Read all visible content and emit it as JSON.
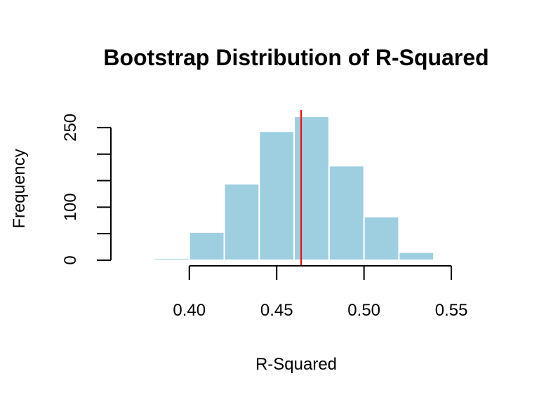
{
  "chart_data": {
    "type": "bar",
    "title": "Bootstrap Distribution of R-Squared",
    "xlabel": "R-Squared",
    "ylabel": "Frequency",
    "bins": [
      {
        "start": 0.38,
        "end": 0.4,
        "count": 4
      },
      {
        "start": 0.4,
        "end": 0.42,
        "count": 53
      },
      {
        "start": 0.42,
        "end": 0.44,
        "count": 144
      },
      {
        "start": 0.44,
        "end": 0.46,
        "count": 243
      },
      {
        "start": 0.46,
        "end": 0.48,
        "count": 271
      },
      {
        "start": 0.48,
        "end": 0.5,
        "count": 178
      },
      {
        "start": 0.5,
        "end": 0.52,
        "count": 82
      },
      {
        "start": 0.52,
        "end": 0.54,
        "count": 15
      },
      {
        "start": 0.54,
        "end": 0.56,
        "count": 2
      }
    ],
    "xlim": [
      0.38,
      0.56
    ],
    "ylim": [
      0,
      271
    ],
    "x_axis_ticks": [
      0.4,
      0.45,
      0.5,
      0.55
    ],
    "x_tick_labels": [
      "0.40",
      "0.45",
      "0.50",
      "0.55"
    ],
    "y_axis_ticks": [
      0,
      50,
      100,
      150,
      200,
      250
    ],
    "y_tick_labels": [
      "0",
      "",
      "100",
      "",
      "",
      "250"
    ],
    "reference_line": {
      "x": 0.464,
      "color": "#ff0000"
    },
    "bar_color": "#9ecfe0",
    "grid": false
  }
}
